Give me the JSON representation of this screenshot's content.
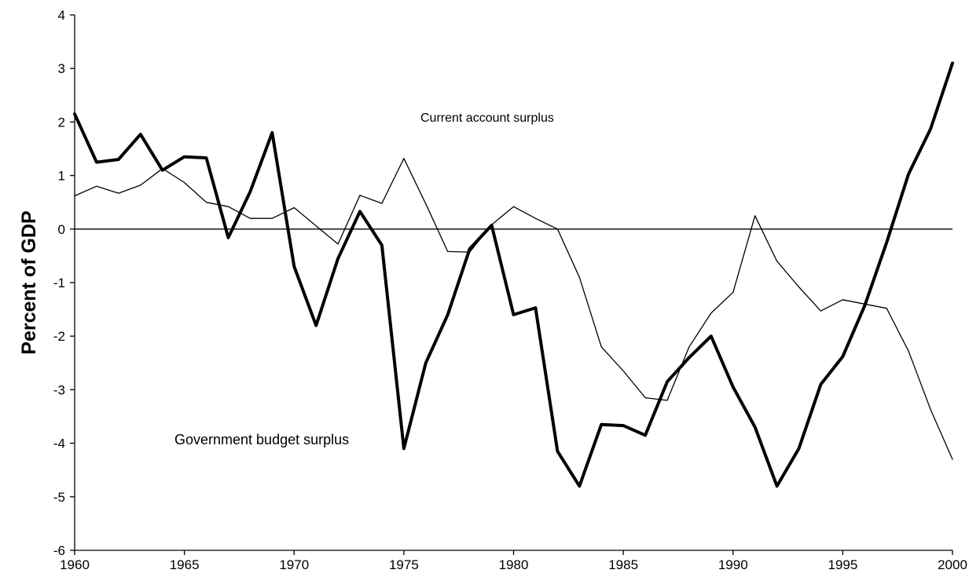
{
  "chart_data": {
    "type": "line",
    "ylabel": "Percent of GDP",
    "xlim": [
      1960,
      2000
    ],
    "ylim": [
      -6,
      4
    ],
    "x_ticks": [
      "1960",
      "1965",
      "1970",
      "1975",
      "1980",
      "1985",
      "1990",
      "1995",
      "2000"
    ],
    "y_ticks": [
      "4",
      "3",
      "2",
      "1",
      "0",
      "-1",
      "-2",
      "-3",
      "-4",
      "-5",
      "-6"
    ],
    "grid": false,
    "zero_line": true,
    "annotations": [
      "Current account surplus",
      "Government  budget surplus"
    ],
    "x": [
      1960,
      1961,
      1962,
      1963,
      1964,
      1965,
      1966,
      1967,
      1968,
      1969,
      1970,
      1971,
      1972,
      1973,
      1974,
      1975,
      1976,
      1977,
      1978,
      1979,
      1980,
      1981,
      1982,
      1983,
      1984,
      1985,
      1986,
      1987,
      1988,
      1989,
      1990,
      1991,
      1992,
      1993,
      1994,
      1995,
      1996,
      1997,
      1998,
      1999,
      2000
    ],
    "series": [
      {
        "name": "Government  budget surplus",
        "style": "thick",
        "color": "#000000",
        "values": [
          2.15,
          1.25,
          1.3,
          1.77,
          1.1,
          1.35,
          1.33,
          -0.16,
          0.7,
          1.8,
          -0.7,
          -1.8,
          -0.55,
          0.33,
          -0.3,
          -4.1,
          -2.5,
          -1.6,
          -0.37,
          0.07,
          -1.6,
          -1.47,
          -4.15,
          -4.8,
          -3.65,
          -3.67,
          -3.85,
          -2.85,
          -2.4,
          -2.0,
          -2.95,
          -3.7,
          -4.8,
          -4.1,
          -2.9,
          -2.38,
          -1.43,
          -0.25,
          1.03,
          1.87,
          3.1
        ]
      },
      {
        "name": "Current account surplus",
        "style": "thin",
        "color": "#000000",
        "values": [
          0.62,
          0.8,
          0.67,
          0.82,
          1.13,
          0.87,
          0.5,
          0.42,
          0.2,
          0.2,
          0.4,
          0.06,
          -0.28,
          0.63,
          0.48,
          1.32,
          0.47,
          -0.42,
          -0.43,
          0.08,
          0.42,
          0.2,
          0.0,
          -0.9,
          -2.2,
          -2.65,
          -3.15,
          -3.2,
          -2.2,
          -1.57,
          -1.18,
          0.25,
          -0.6,
          -1.08,
          -1.53,
          -1.32,
          -1.4,
          -1.48,
          -2.28,
          -3.37,
          -4.3
        ]
      }
    ]
  }
}
